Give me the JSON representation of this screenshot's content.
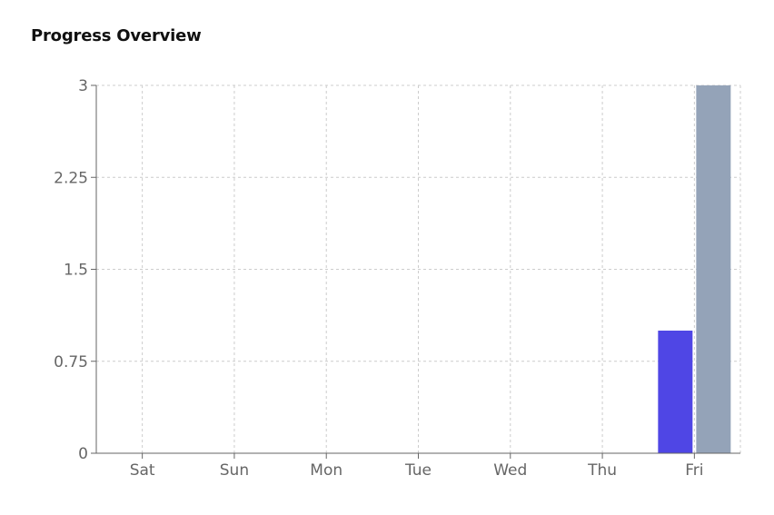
{
  "title": "Progress Overview",
  "chart_data": {
    "type": "bar",
    "categories": [
      "Sat",
      "Sun",
      "Mon",
      "Tue",
      "Wed",
      "Thu",
      "Fri"
    ],
    "series": [
      {
        "values": [
          0,
          0,
          0,
          0,
          0,
          0,
          1
        ],
        "color": "#4f46e5"
      },
      {
        "values": [
          0,
          0,
          0,
          0,
          0,
          0,
          3
        ],
        "color": "#94a3b8"
      }
    ],
    "ylim": [
      0,
      3
    ],
    "yticks": [
      0,
      0.75,
      1.5,
      2.25,
      3
    ],
    "ytick_labels": [
      "0",
      "0.75",
      "1.5",
      "2.25",
      "3"
    ],
    "grid": true,
    "xlabel": "",
    "ylabel": ""
  }
}
